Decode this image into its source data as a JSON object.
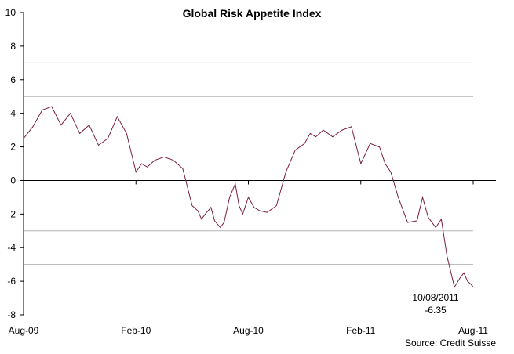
{
  "chart_data": {
    "type": "line",
    "title": "Global Risk Appetite Index",
    "xlabel": "",
    "ylabel": "",
    "ylim": [
      -8,
      10
    ],
    "yticks": [
      10,
      8,
      6,
      4,
      2,
      0,
      -2,
      -4,
      -6,
      -8
    ],
    "reference_lines": [
      7,
      5,
      -3,
      -5
    ],
    "x_tick_labels": [
      "Aug-09",
      "Feb-10",
      "Aug-10",
      "Feb-11",
      "Aug-11"
    ],
    "x_range_months": [
      0,
      24
    ],
    "series": [
      {
        "name": "Global Risk Appetite Index",
        "color": "#7a1f3d",
        "x_months": [
          0,
          0.5,
          1,
          1.5,
          2,
          2.5,
          3,
          3.5,
          4,
          4.5,
          5,
          5.5,
          6,
          6.3,
          6.6,
          7,
          7.5,
          8,
          8.5,
          9,
          9.3,
          9.5,
          9.7,
          10,
          10.2,
          10.5,
          10.7,
          11,
          11.3,
          11.5,
          11.7,
          12,
          12.3,
          12.6,
          13,
          13.5,
          14,
          14.5,
          15,
          15.3,
          15.6,
          16,
          16.5,
          17,
          17.5,
          18,
          18.5,
          19,
          19.3,
          19.6,
          20,
          20.5,
          21,
          21.3,
          21.6,
          22,
          22.3,
          22.6,
          23,
          23.3,
          23.5,
          23.7,
          23.9,
          24
        ],
        "values": [
          2.5,
          3.2,
          4.2,
          4.4,
          3.3,
          4.0,
          2.8,
          3.3,
          2.1,
          2.5,
          3.8,
          2.8,
          0.5,
          1.0,
          0.8,
          1.2,
          1.4,
          1.2,
          0.7,
          -1.5,
          -1.8,
          -2.3,
          -2.0,
          -1.6,
          -2.4,
          -2.8,
          -2.5,
          -1.0,
          -0.2,
          -1.5,
          -2.0,
          -1.0,
          -1.6,
          -1.8,
          -1.9,
          -1.5,
          0.5,
          1.8,
          2.2,
          2.8,
          2.6,
          3.0,
          2.6,
          3.0,
          3.2,
          1.0,
          2.2,
          2.0,
          1.0,
          0.5,
          -1.0,
          -2.5,
          -2.4,
          -1.0,
          -2.2,
          -2.8,
          -2.3,
          -4.5,
          -6.35,
          -5.8,
          -5.5,
          -6.0,
          -6.2,
          -6.35
        ]
      }
    ],
    "annotation": {
      "date": "10/08/2011",
      "value": "-6.35"
    },
    "source": "Source: Credit Suisse"
  }
}
